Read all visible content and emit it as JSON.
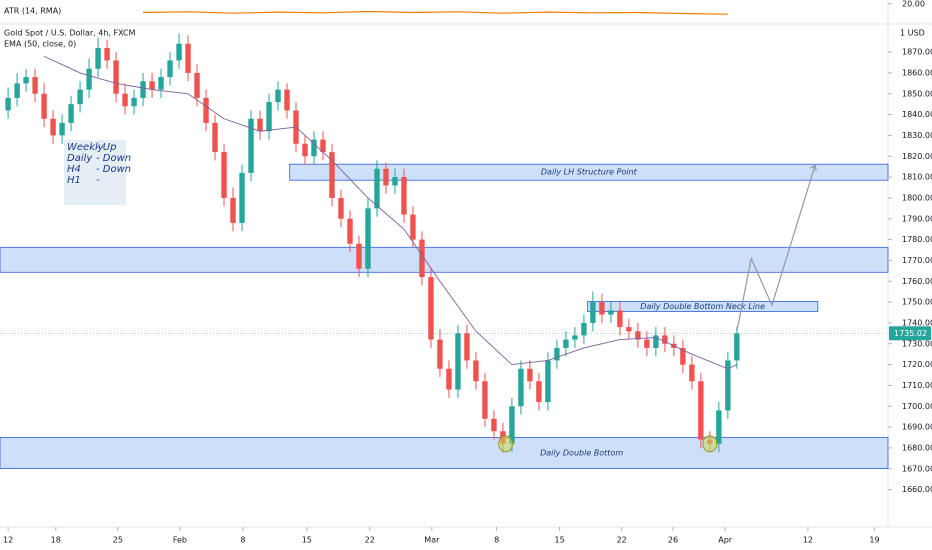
{
  "chart_data": {
    "type": "candlestick",
    "title": "Gold Spot / U.S. Dollar, 4h, FXCM",
    "currency": "1 USD",
    "up_color": "#26a69a",
    "down_color": "#ef5350",
    "x": [
      0,
      1,
      2,
      3,
      4,
      5,
      6,
      7,
      8,
      9,
      10,
      11,
      12,
      13,
      14,
      15,
      16,
      17,
      18,
      19,
      20,
      21,
      22,
      23,
      24,
      25,
      26,
      27,
      28,
      29,
      30,
      31,
      32,
      33,
      34,
      35,
      36,
      37,
      38,
      39,
      40,
      41,
      42,
      43,
      44,
      45,
      46,
      47,
      48,
      49,
      50,
      51,
      52,
      53,
      54,
      55,
      56,
      57,
      58,
      59,
      60,
      61,
      62,
      63,
      64,
      65,
      66,
      67,
      68,
      69,
      70,
      71,
      72,
      73,
      74,
      75,
      76,
      77,
      78,
      79,
      80,
      81
    ],
    "open": [
      1842,
      1848,
      1855,
      1858,
      1850,
      1838,
      1830,
      1836,
      1845,
      1852,
      1862,
      1872,
      1866,
      1850,
      1844,
      1848,
      1856,
      1852,
      1858,
      1866,
      1874,
      1860,
      1848,
      1836,
      1822,
      1800,
      1788,
      1812,
      1838,
      1832,
      1846,
      1852,
      1842,
      1826,
      1820,
      1828,
      1822,
      1800,
      1790,
      1778,
      1766,
      1795,
      1814,
      1806,
      1810,
      1792,
      1780,
      1762,
      1732,
      1718,
      1708,
      1735,
      1722,
      1712,
      1694,
      1688,
      1682,
      1700,
      1718,
      1712,
      1702,
      1722,
      1728,
      1732,
      1734,
      1740,
      1750,
      1744,
      1746,
      1738,
      1736,
      1732,
      1728,
      1734,
      1730,
      1728,
      1720,
      1712,
      1684,
      1682,
      1698,
      1722
    ],
    "high": [
      1853,
      1860,
      1862,
      1862,
      1855,
      1842,
      1840,
      1849,
      1856,
      1867,
      1877,
      1876,
      1870,
      1855,
      1852,
      1860,
      1860,
      1862,
      1870,
      1879,
      1878,
      1864,
      1852,
      1840,
      1826,
      1805,
      1816,
      1842,
      1842,
      1850,
      1856,
      1855,
      1846,
      1830,
      1832,
      1832,
      1826,
      1804,
      1794,
      1782,
      1800,
      1818,
      1817,
      1814,
      1814,
      1796,
      1784,
      1766,
      1737,
      1722,
      1739,
      1739,
      1726,
      1716,
      1698,
      1692,
      1704,
      1722,
      1722,
      1716,
      1726,
      1732,
      1736,
      1738,
      1744,
      1755,
      1754,
      1750,
      1750,
      1742,
      1740,
      1736,
      1738,
      1738,
      1734,
      1732,
      1724,
      1716,
      1688,
      1702,
      1726,
      1738
    ],
    "low": [
      1838,
      1844,
      1851,
      1846,
      1834,
      1826,
      1826,
      1832,
      1841,
      1848,
      1858,
      1862,
      1846,
      1840,
      1840,
      1844,
      1848,
      1848,
      1854,
      1862,
      1856,
      1844,
      1832,
      1818,
      1796,
      1784,
      1784,
      1808,
      1828,
      1828,
      1842,
      1838,
      1822,
      1816,
      1816,
      1818,
      1796,
      1786,
      1774,
      1762,
      1762,
      1791,
      1802,
      1802,
      1788,
      1776,
      1758,
      1728,
      1714,
      1704,
      1704,
      1718,
      1708,
      1690,
      1684,
      1678,
      1678,
      1696,
      1708,
      1698,
      1698,
      1718,
      1724,
      1728,
      1730,
      1736,
      1740,
      1740,
      1734,
      1732,
      1728,
      1724,
      1724,
      1726,
      1724,
      1716,
      1708,
      1680,
      1678,
      1678,
      1694,
      1718
    ],
    "close": [
      1848,
      1855,
      1858,
      1850,
      1838,
      1830,
      1836,
      1845,
      1852,
      1862,
      1872,
      1866,
      1850,
      1844,
      1848,
      1856,
      1852,
      1858,
      1866,
      1874,
      1860,
      1848,
      1836,
      1822,
      1800,
      1788,
      1812,
      1838,
      1832,
      1846,
      1852,
      1842,
      1826,
      1820,
      1828,
      1822,
      1800,
      1790,
      1778,
      1766,
      1795,
      1814,
      1806,
      1810,
      1792,
      1780,
      1762,
      1732,
      1718,
      1708,
      1735,
      1722,
      1712,
      1694,
      1688,
      1682,
      1700,
      1718,
      1712,
      1702,
      1722,
      1728,
      1732,
      1734,
      1740,
      1750,
      1744,
      1746,
      1738,
      1736,
      1732,
      1728,
      1734,
      1730,
      1728,
      1720,
      1712,
      1684,
      1682,
      1698,
      1722,
      1735.02
    ],
    "ema": {
      "name": "EMA (50, close, 0)",
      "color": "#7b5e9e",
      "x": [
        4,
        8,
        12,
        16,
        20,
        24,
        28,
        32,
        36,
        40,
        44,
        48,
        52,
        56,
        60,
        64,
        68,
        72,
        76,
        80,
        81
      ],
      "values": [
        1868,
        1860,
        1855,
        1852,
        1850,
        1838,
        1832,
        1834,
        1818,
        1800,
        1785,
        1760,
        1736,
        1720,
        1722,
        1728,
        1732,
        1733,
        1725,
        1718,
        1720
      ]
    },
    "atr": {
      "name": "ATR (14, RMA)",
      "color": "#f57c00",
      "ylim": [
        14,
        20.5
      ],
      "yticks": [
        {
          "value": 20,
          "label": "20.00"
        }
      ],
      "x": [
        15,
        20,
        25,
        30,
        35,
        40,
        45,
        50,
        55,
        60,
        65,
        70,
        75,
        80
      ],
      "values": [
        17.4,
        17.6,
        17.2,
        17.5,
        17.3,
        17.7,
        17.4,
        17.6,
        17.2,
        17.5,
        17.3,
        17.4,
        17.1,
        16.9
      ]
    },
    "xlim": [
      -0.9,
      97.8
    ],
    "ylim": [
      1643,
      1883
    ],
    "yticks": [
      {
        "value": 1660,
        "label": "1660.00"
      },
      {
        "value": 1670,
        "label": "1670.00"
      },
      {
        "value": 1680,
        "label": "1680.00"
      },
      {
        "value": 1690,
        "label": "1690.00"
      },
      {
        "value": 1700,
        "label": "1700.00"
      },
      {
        "value": 1710,
        "label": "1710.00"
      },
      {
        "value": 1720,
        "label": "1720.00"
      },
      {
        "value": 1730,
        "label": "1730.00"
      },
      {
        "value": 1740,
        "label": "1740.00"
      },
      {
        "value": 1750,
        "label": "1750.00"
      },
      {
        "value": 1760,
        "label": "1760.00"
      },
      {
        "value": 1770,
        "label": "1770.00"
      },
      {
        "value": 1780,
        "label": "1780.00"
      },
      {
        "value": 1790,
        "label": "1790.00"
      },
      {
        "value": 1800,
        "label": "1800.00"
      },
      {
        "value": 1810,
        "label": "1810.00"
      },
      {
        "value": 1820,
        "label": "1820.00"
      },
      {
        "value": 1830,
        "label": "1830.00"
      },
      {
        "value": 1840,
        "label": "1840.00"
      },
      {
        "value": 1850,
        "label": "1850.00"
      },
      {
        "value": 1860,
        "label": "1860.00"
      },
      {
        "value": 1870,
        "label": "1870.00"
      }
    ],
    "xticks": [
      {
        "value": 0,
        "label": "12"
      },
      {
        "value": 5.3,
        "label": "18"
      },
      {
        "value": 12.2,
        "label": "25"
      },
      {
        "value": 19.1,
        "label": "Feb"
      },
      {
        "value": 26.1,
        "label": "8"
      },
      {
        "value": 33.2,
        "label": "15"
      },
      {
        "value": 40.2,
        "label": "22"
      },
      {
        "value": 47.1,
        "label": "Mar"
      },
      {
        "value": 54.3,
        "label": "8"
      },
      {
        "value": 61.3,
        "label": "15"
      },
      {
        "value": 68.2,
        "label": "22"
      },
      {
        "value": 73.9,
        "label": "26"
      },
      {
        "value": 79.7,
        "label": "Apr"
      },
      {
        "value": 88.9,
        "label": "12"
      },
      {
        "value": 96.3,
        "label": "19"
      }
    ],
    "zones": [
      {
        "label": "Daily LH Structure Point",
        "x": [
          31.3,
          97.8
        ],
        "y": [
          1808.5,
          1816.2
        ]
      },
      {
        "y": [
          1764.3,
          1776.3
        ]
      },
      {
        "label": "Daily Double Bottom Neck Line",
        "x": [
          64.4,
          90
        ],
        "y": [
          1745.5,
          1750.3
        ]
      },
      {
        "label": "Daily Double Bottom",
        "y": [
          1670.1,
          1685
        ]
      }
    ],
    "circles": [
      {
        "x": 55.3,
        "y": 1682
      },
      {
        "x": 78,
        "y": 1682
      }
    ],
    "projection": {
      "x": [
        81,
        82.6,
        84.9,
        89.7
      ],
      "y": [
        1736,
        1771,
        1748.5,
        1815.7
      ]
    },
    "bias": [
      [
        "Weekly",
        "- Up"
      ],
      [
        "Daily",
        "- Down"
      ],
      [
        "H4",
        "- Down"
      ],
      [
        "H1",
        "-"
      ]
    ]
  }
}
